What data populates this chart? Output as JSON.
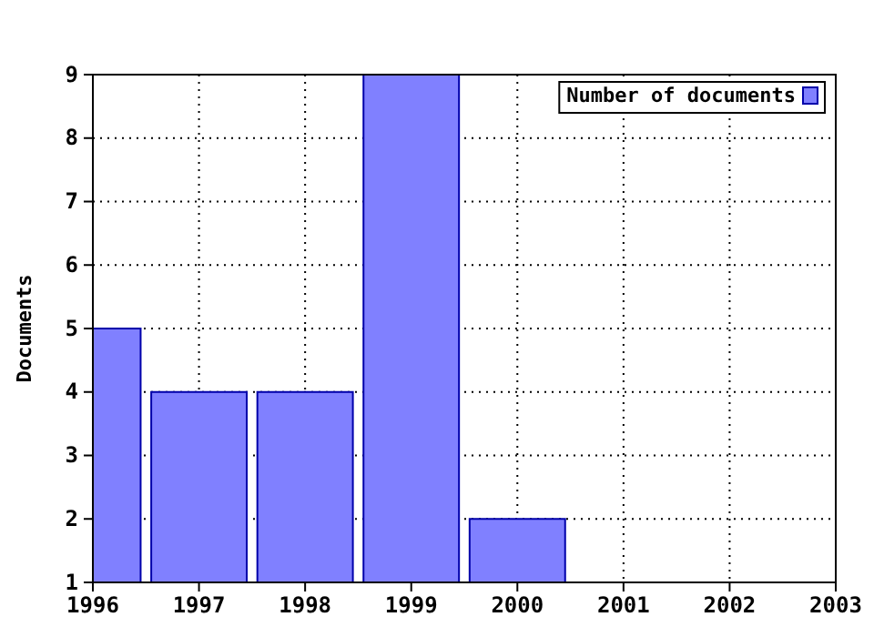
{
  "chart_data": {
    "type": "bar",
    "ylabel": "Documents",
    "x": [
      1996,
      1997,
      1998,
      1999,
      2000
    ],
    "series": [
      {
        "name": "Number of documents",
        "color": "#8080ff",
        "values": [
          5,
          4,
          4,
          9,
          2
        ]
      }
    ],
    "xlim": [
      1996,
      2003
    ],
    "xticks": [
      1996,
      1997,
      1998,
      1999,
      2000,
      2001,
      2002,
      2003
    ],
    "ylim": [
      1,
      9
    ],
    "yticks": [
      1,
      2,
      3,
      4,
      5,
      6,
      7,
      8,
      9
    ],
    "grid": true,
    "legend": "top right"
  }
}
